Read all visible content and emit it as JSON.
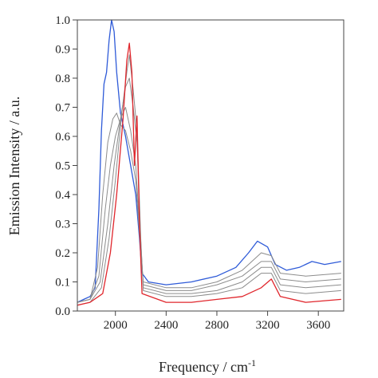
{
  "chart_data": {
    "type": "line",
    "xlabel": "Frequency / cm",
    "xlabel_superscript": "-1",
    "ylabel": "Emission Intensity / a.u.",
    "xlim": [
      1700,
      3800
    ],
    "ylim": [
      0,
      1.0
    ],
    "x_ticks": [
      2000,
      2400,
      2800,
      3200,
      3600
    ],
    "y_ticks": [
      0.0,
      0.1,
      0.2,
      0.3,
      0.4,
      0.5,
      0.6,
      0.7,
      0.8,
      0.9,
      1.0
    ],
    "grid": false,
    "legend": "none",
    "colors": {
      "first": "#2f5bd8",
      "intermediate": "#8c8c8c",
      "last": "#e0262c"
    },
    "series": [
      {
        "color": "#2f5bd8",
        "points": [
          [
            1700,
            0.03
          ],
          [
            1750,
            0.04
          ],
          [
            1800,
            0.05
          ],
          [
            1840,
            0.08
          ],
          [
            1870,
            0.35
          ],
          [
            1890,
            0.62
          ],
          [
            1910,
            0.78
          ],
          [
            1930,
            0.82
          ],
          [
            1950,
            0.93
          ],
          [
            1970,
            1.0
          ],
          [
            1990,
            0.96
          ],
          [
            2010,
            0.82
          ],
          [
            2040,
            0.68
          ],
          [
            2080,
            0.6
          ],
          [
            2120,
            0.5
          ],
          [
            2160,
            0.4
          ],
          [
            2190,
            0.25
          ],
          [
            2210,
            0.13
          ],
          [
            2260,
            0.1
          ],
          [
            2400,
            0.09
          ],
          [
            2600,
            0.1
          ],
          [
            2800,
            0.12
          ],
          [
            2950,
            0.15
          ],
          [
            3050,
            0.2
          ],
          [
            3120,
            0.24
          ],
          [
            3200,
            0.22
          ],
          [
            3260,
            0.16
          ],
          [
            3350,
            0.14
          ],
          [
            3450,
            0.15
          ],
          [
            3550,
            0.17
          ],
          [
            3650,
            0.16
          ],
          [
            3780,
            0.17
          ]
        ]
      },
      {
        "color": "#8c8c8c",
        "points": [
          [
            1700,
            0.03
          ],
          [
            1800,
            0.04
          ],
          [
            1860,
            0.15
          ],
          [
            1900,
            0.4
          ],
          [
            1940,
            0.58
          ],
          [
            1980,
            0.66
          ],
          [
            2010,
            0.68
          ],
          [
            2040,
            0.64
          ],
          [
            2080,
            0.62
          ],
          [
            2120,
            0.55
          ],
          [
            2160,
            0.45
          ],
          [
            2200,
            0.2
          ],
          [
            2220,
            0.1
          ],
          [
            2400,
            0.08
          ],
          [
            2600,
            0.08
          ],
          [
            2800,
            0.1
          ],
          [
            3000,
            0.14
          ],
          [
            3150,
            0.2
          ],
          [
            3230,
            0.19
          ],
          [
            3300,
            0.13
          ],
          [
            3500,
            0.12
          ],
          [
            3780,
            0.13
          ]
        ]
      },
      {
        "color": "#8c8c8c",
        "points": [
          [
            1700,
            0.03
          ],
          [
            1800,
            0.04
          ],
          [
            1870,
            0.12
          ],
          [
            1920,
            0.35
          ],
          [
            1960,
            0.5
          ],
          [
            2000,
            0.6
          ],
          [
            2040,
            0.66
          ],
          [
            2080,
            0.7
          ],
          [
            2120,
            0.62
          ],
          [
            2160,
            0.5
          ],
          [
            2200,
            0.22
          ],
          [
            2220,
            0.09
          ],
          [
            2400,
            0.07
          ],
          [
            2600,
            0.07
          ],
          [
            2800,
            0.09
          ],
          [
            3000,
            0.12
          ],
          [
            3150,
            0.17
          ],
          [
            3230,
            0.17
          ],
          [
            3300,
            0.11
          ],
          [
            3500,
            0.1
          ],
          [
            3780,
            0.11
          ]
        ]
      },
      {
        "color": "#8c8c8c",
        "points": [
          [
            1700,
            0.03
          ],
          [
            1800,
            0.04
          ],
          [
            1880,
            0.1
          ],
          [
            1940,
            0.3
          ],
          [
            1990,
            0.5
          ],
          [
            2040,
            0.66
          ],
          [
            2080,
            0.77
          ],
          [
            2110,
            0.8
          ],
          [
            2140,
            0.7
          ],
          [
            2170,
            0.58
          ],
          [
            2200,
            0.24
          ],
          [
            2220,
            0.08
          ],
          [
            2400,
            0.06
          ],
          [
            2600,
            0.06
          ],
          [
            2800,
            0.07
          ],
          [
            3000,
            0.1
          ],
          [
            3150,
            0.15
          ],
          [
            3230,
            0.15
          ],
          [
            3300,
            0.09
          ],
          [
            3500,
            0.08
          ],
          [
            3780,
            0.09
          ]
        ]
      },
      {
        "color": "#8c8c8c",
        "points": [
          [
            1700,
            0.02
          ],
          [
            1800,
            0.03
          ],
          [
            1890,
            0.08
          ],
          [
            1950,
            0.25
          ],
          [
            2000,
            0.45
          ],
          [
            2050,
            0.68
          ],
          [
            2090,
            0.82
          ],
          [
            2110,
            0.88
          ],
          [
            2140,
            0.76
          ],
          [
            2170,
            0.62
          ],
          [
            2200,
            0.25
          ],
          [
            2220,
            0.07
          ],
          [
            2400,
            0.05
          ],
          [
            2600,
            0.05
          ],
          [
            2800,
            0.06
          ],
          [
            3000,
            0.08
          ],
          [
            3150,
            0.13
          ],
          [
            3230,
            0.13
          ],
          [
            3300,
            0.07
          ],
          [
            3500,
            0.06
          ],
          [
            3780,
            0.07
          ]
        ]
      },
      {
        "color": "#e0262c",
        "points": [
          [
            1700,
            0.02
          ],
          [
            1800,
            0.03
          ],
          [
            1900,
            0.06
          ],
          [
            1960,
            0.2
          ],
          [
            2010,
            0.4
          ],
          [
            2060,
            0.66
          ],
          [
            2090,
            0.86
          ],
          [
            2110,
            0.92
          ],
          [
            2130,
            0.82
          ],
          [
            2150,
            0.5
          ],
          [
            2170,
            0.67
          ],
          [
            2190,
            0.3
          ],
          [
            2210,
            0.06
          ],
          [
            2400,
            0.03
          ],
          [
            2600,
            0.03
          ],
          [
            2800,
            0.04
          ],
          [
            3000,
            0.05
          ],
          [
            3150,
            0.08
          ],
          [
            3230,
            0.11
          ],
          [
            3300,
            0.05
          ],
          [
            3500,
            0.03
          ],
          [
            3780,
            0.04
          ]
        ]
      }
    ]
  }
}
